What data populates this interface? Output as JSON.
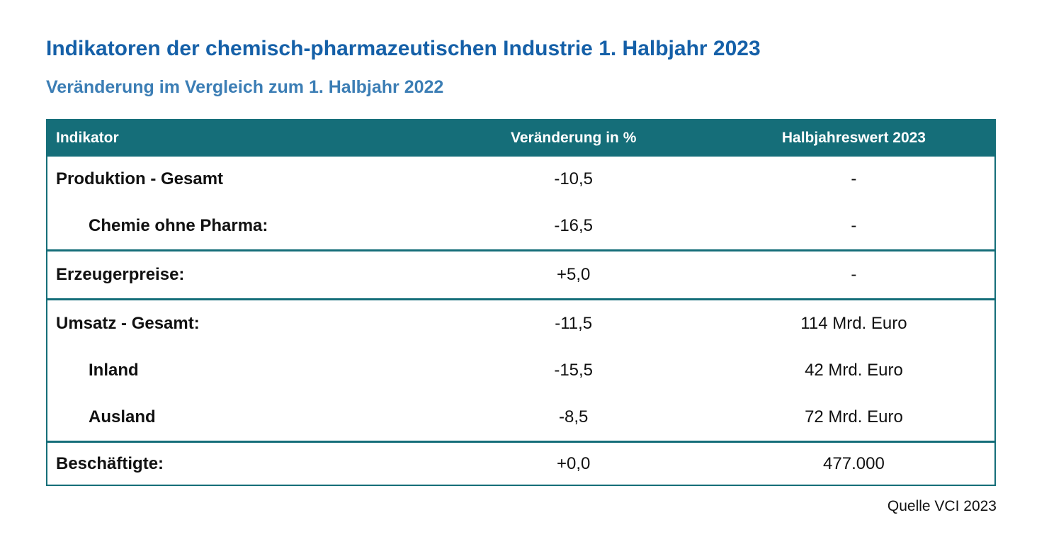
{
  "colors": {
    "teal_header": "#156E79",
    "title_blue": "#1560A8",
    "subtitle_blue": "#3C7EB5",
    "header_text": "#FFFFFF",
    "body_text": "#111111",
    "background": "#FFFFFF"
  },
  "chart_data": {
    "type": "table",
    "title": "Indikatoren der chemisch-pharmazeutischen Industrie 1. Halbjahr 2023",
    "subtitle": "Veränderung im Vergleich zum 1. Halbjahr 2022",
    "columns": [
      "Indikator",
      "Veränderung in %",
      "Halbjahreswert 2023"
    ],
    "groups": [
      {
        "rows": [
          {
            "indicator": "Produktion - Gesamt",
            "indent": false,
            "change": "-10,5",
            "value": "-"
          },
          {
            "indicator": "Chemie ohne Pharma:",
            "indent": true,
            "change": "-16,5",
            "value": "-"
          }
        ]
      },
      {
        "rows": [
          {
            "indicator": "Erzeugerpreise:",
            "indent": false,
            "change": "+5,0",
            "value": "-"
          }
        ]
      },
      {
        "rows": [
          {
            "indicator": "Umsatz - Gesamt:",
            "indent": false,
            "change": "-11,5",
            "value": "114 Mrd. Euro"
          },
          {
            "indicator": "Inland",
            "indent": true,
            "change": "-15,5",
            "value": "42 Mrd. Euro"
          },
          {
            "indicator": "Ausland",
            "indent": true,
            "change": "-8,5",
            "value": "72 Mrd. Euro"
          }
        ]
      },
      {
        "rows": [
          {
            "indicator": "Beschäftigte:",
            "indent": false,
            "change": "+0,0",
            "value": "477.000"
          }
        ]
      }
    ],
    "source": "Quelle VCI 2023"
  }
}
